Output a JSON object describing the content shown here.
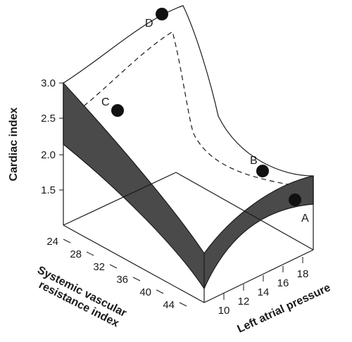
{
  "chart_data": {
    "type": "surface-3d",
    "yaxis": {
      "title": "Cardiac index",
      "ticks": [
        "3.0",
        "2.5",
        "2.0",
        "1.5"
      ]
    },
    "svr_axis": {
      "title_line1": "Systemic vascular",
      "title_line2": "resistance index",
      "ticks": [
        "24",
        "28",
        "32",
        "36",
        "40",
        "44"
      ]
    },
    "lap_axis": {
      "title": "Left atrial pressure",
      "ticks": [
        "10",
        "12",
        "14",
        "16",
        "18"
      ]
    },
    "points": [
      {
        "label": "A"
      },
      {
        "label": "B"
      },
      {
        "label": "C"
      },
      {
        "label": "D"
      }
    ]
  },
  "colors": {
    "band": "#4a4a4a",
    "line": "#1a1a1a",
    "point": "#111111"
  }
}
